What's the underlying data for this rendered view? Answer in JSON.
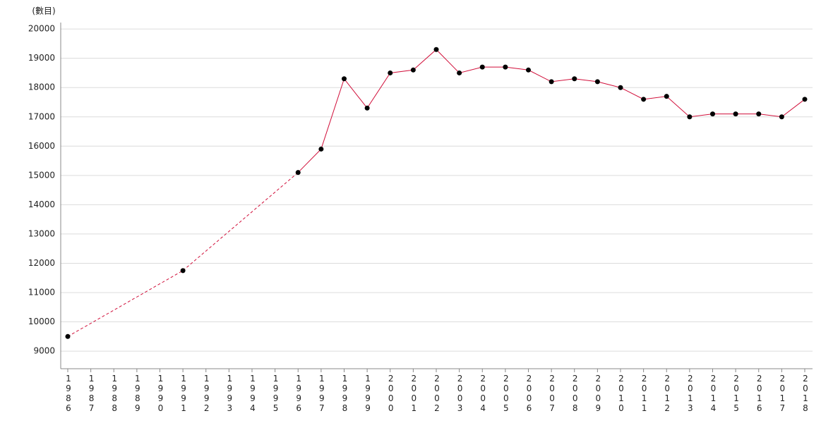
{
  "chart_data": {
    "type": "line",
    "y_label": "(數目)",
    "categories": [
      "1986",
      "1987",
      "1988",
      "1989",
      "1990",
      "1991",
      "1992",
      "1993",
      "1994",
      "1995",
      "1996",
      "1997",
      "1998",
      "1999",
      "2000",
      "2001",
      "2002",
      "2003",
      "2004",
      "2005",
      "2006",
      "2007",
      "2008",
      "2009",
      "2010",
      "2011",
      "2012",
      "2013",
      "2014",
      "2015",
      "2016",
      "2017",
      "2018"
    ],
    "series": [
      {
        "color": "#d10f3a",
        "values": [
          9500,
          null,
          null,
          null,
          null,
          11750,
          null,
          null,
          null,
          null,
          15100,
          15900,
          18300,
          17300,
          18500,
          18600,
          19300,
          18500,
          18700,
          18700,
          18600,
          18200,
          18300,
          18200,
          18000,
          17600,
          17700,
          17000,
          17100,
          17100,
          17100,
          17000,
          17600
        ]
      }
    ],
    "ylim": [
      8400,
      20220
    ],
    "yticks": [
      9000,
      10000,
      11000,
      12000,
      13000,
      14000,
      15000,
      16000,
      17000,
      18000,
      19000,
      20000
    ],
    "grid": true
  }
}
